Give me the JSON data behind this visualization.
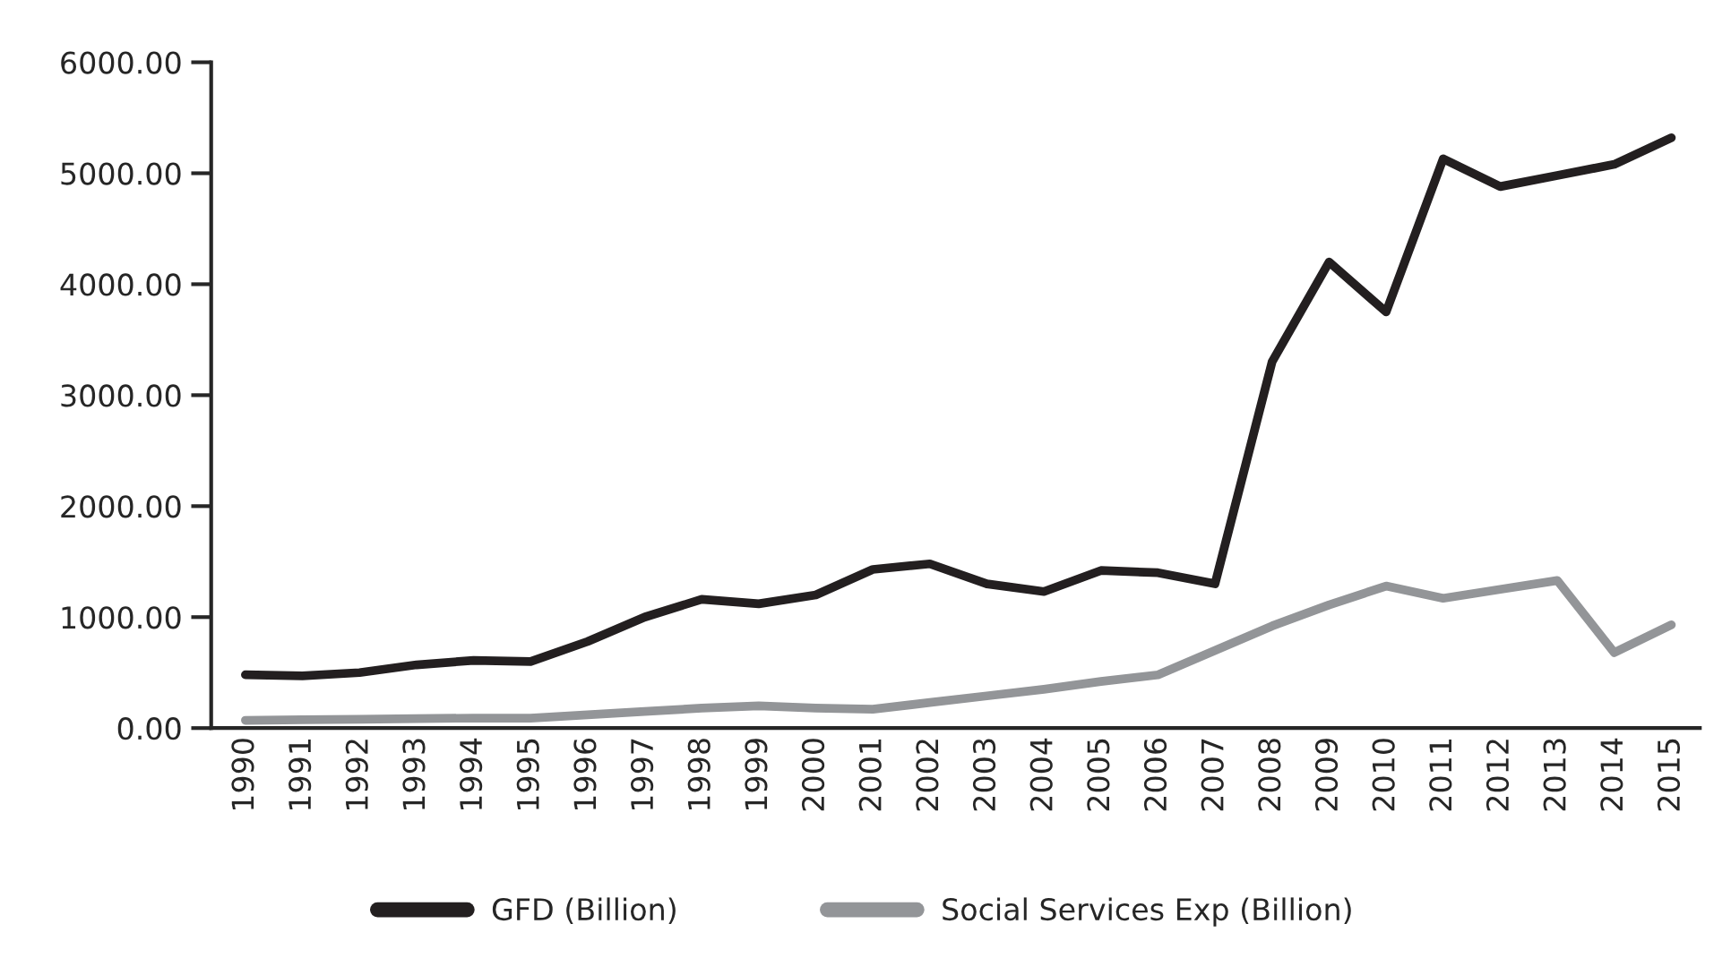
{
  "chart_data": {
    "type": "line",
    "categories": [
      "1990",
      "1991",
      "1992",
      "1993",
      "1994",
      "1995",
      "1996",
      "1997",
      "1998",
      "1999",
      "2000",
      "2001",
      "2002",
      "2003",
      "2004",
      "2005",
      "2006",
      "2007",
      "2008",
      "2009",
      "2010",
      "2011",
      "2012",
      "2013",
      "2014",
      "2015"
    ],
    "series": [
      {
        "name": "GFD (Billion)",
        "color": "#231f20",
        "values": [
          480,
          470,
          500,
          570,
          610,
          600,
          780,
          1000,
          1160,
          1120,
          1200,
          1430,
          1480,
          1300,
          1230,
          1420,
          1400,
          1300,
          3300,
          4200,
          3750,
          5130,
          4880,
          4980,
          5080,
          5320
        ]
      },
      {
        "name": "Social Services Exp (Billion)",
        "color": "#939598",
        "values": [
          70,
          75,
          80,
          85,
          90,
          90,
          120,
          150,
          180,
          200,
          180,
          170,
          230,
          290,
          350,
          420,
          480,
          700,
          920,
          1110,
          1280,
          1170,
          1250,
          1330,
          680,
          930
        ]
      }
    ],
    "ylim": [
      0,
      6000
    ],
    "yticks": [
      {
        "value": 0,
        "label": "0.00"
      },
      {
        "value": 1000,
        "label": "1000.00"
      },
      {
        "value": 2000,
        "label": "2000.00"
      },
      {
        "value": 3000,
        "label": "3000.00"
      },
      {
        "value": 4000,
        "label": "4000.00"
      },
      {
        "value": 5000,
        "label": "5000.00"
      },
      {
        "value": 6000,
        "label": "6000.00"
      }
    ],
    "grid": false,
    "legend": "bottom",
    "marker": "none",
    "line_style": "solid"
  }
}
